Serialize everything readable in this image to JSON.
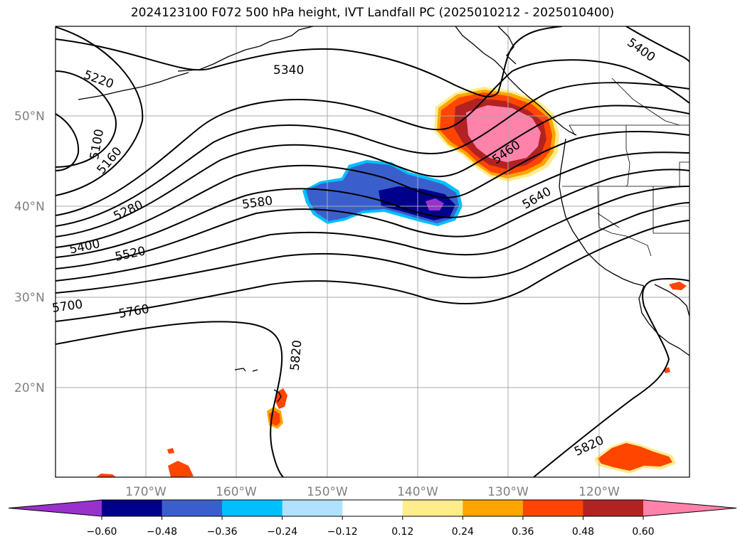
{
  "title": "2024123100 F072 500 hPa height, IVT Landfall PC (2025010212 - 2025010400)",
  "gridlines": {
    "lat": [
      "50°N",
      "40°N",
      "30°N",
      "20°N"
    ],
    "lon": [
      "170°W",
      "160°W",
      "150°W",
      "140°W",
      "130°W",
      "120°W"
    ]
  },
  "contour_labels": [
    "5220",
    "5340",
    "5400",
    "5100",
    "5160",
    "5280",
    "5580",
    "5460",
    "5640",
    "5400",
    "5520",
    "5700",
    "5760",
    "5820",
    "5820"
  ],
  "colorbar": {
    "ticks": [
      "−0.60",
      "−0.48",
      "−0.36",
      "−0.24",
      "−0.12",
      "0.12",
      "0.24",
      "0.36",
      "0.48",
      "0.60"
    ],
    "colors": [
      "#9932cc",
      "#00008b",
      "#3a5fcd",
      "#00bfff",
      "#b0e2ff",
      "#ffffff",
      "#ffec8b",
      "#ffa500",
      "#ff4500",
      "#b22222",
      "#ff82ab"
    ]
  }
}
